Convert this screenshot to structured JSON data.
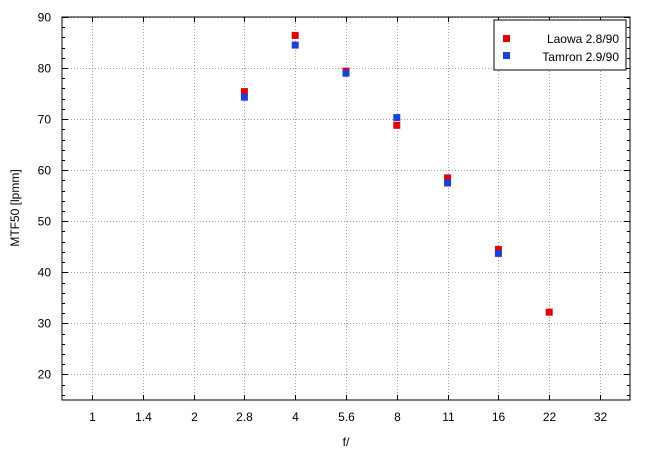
{
  "chart_data": {
    "type": "scatter",
    "xlabel": "f/",
    "ylabel": "MTF50 [lpmm]",
    "title": "",
    "x_scale": "log2",
    "categories": [
      "1",
      "1.4",
      "2",
      "2.8",
      "4",
      "5.6",
      "8",
      "11",
      "16",
      "22",
      "32"
    ],
    "ylim": [
      15,
      90
    ],
    "yticks": [
      20,
      30,
      40,
      50,
      60,
      70,
      80,
      90
    ],
    "grid": true,
    "legend_position": "top-right",
    "series": [
      {
        "name": "Laowa 2.8/90",
        "color": "#e00000",
        "marker": "square",
        "points": [
          {
            "x": "2.8",
            "y": 75.4
          },
          {
            "x": "4",
            "y": 86.4
          },
          {
            "x": "5.6",
            "y": 79.4
          },
          {
            "x": "8",
            "y": 68.8
          },
          {
            "x": "11",
            "y": 58.5
          },
          {
            "x": "16",
            "y": 44.5
          },
          {
            "x": "22",
            "y": 32.2
          }
        ]
      },
      {
        "name": "Tamron 2.9/90",
        "color": "#1c3fd4",
        "marker": "square",
        "points": [
          {
            "x": "2.8",
            "y": 74.3
          },
          {
            "x": "4",
            "y": 84.5
          },
          {
            "x": "5.6",
            "y": 79.0
          },
          {
            "x": "8",
            "y": 70.3
          },
          {
            "x": "11",
            "y": 57.5
          },
          {
            "x": "16",
            "y": 43.7
          }
        ]
      }
    ]
  }
}
